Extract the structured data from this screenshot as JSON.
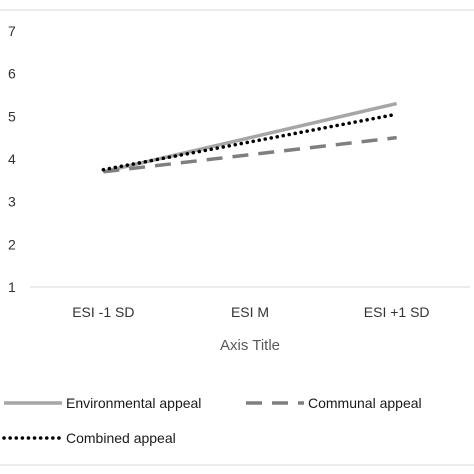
{
  "chart_data": {
    "type": "line",
    "categories": [
      "ESI -1 SD",
      "ESI M",
      "ESI +1 SD"
    ],
    "series": [
      {
        "name": "Environmental appeal",
        "values": [
          3.7,
          4.5,
          5.3
        ],
        "color": "#a6a6a6",
        "style": "solid"
      },
      {
        "name": "Communal appeal",
        "values": [
          3.7,
          4.1,
          4.5
        ],
        "color": "#7f7f7f",
        "style": "dashed"
      },
      {
        "name": "Combined appeal",
        "values": [
          3.75,
          4.4,
          5.05
        ],
        "color": "#000000",
        "style": "dotted"
      }
    ],
    "y_ticks": [
      "1",
      "2",
      "3",
      "4",
      "5",
      "6",
      "7"
    ],
    "ylim": [
      1,
      7
    ],
    "xlabel": "Axis Title",
    "ylabel": "",
    "title": "",
    "grid": false,
    "legend_position": "bottom"
  }
}
